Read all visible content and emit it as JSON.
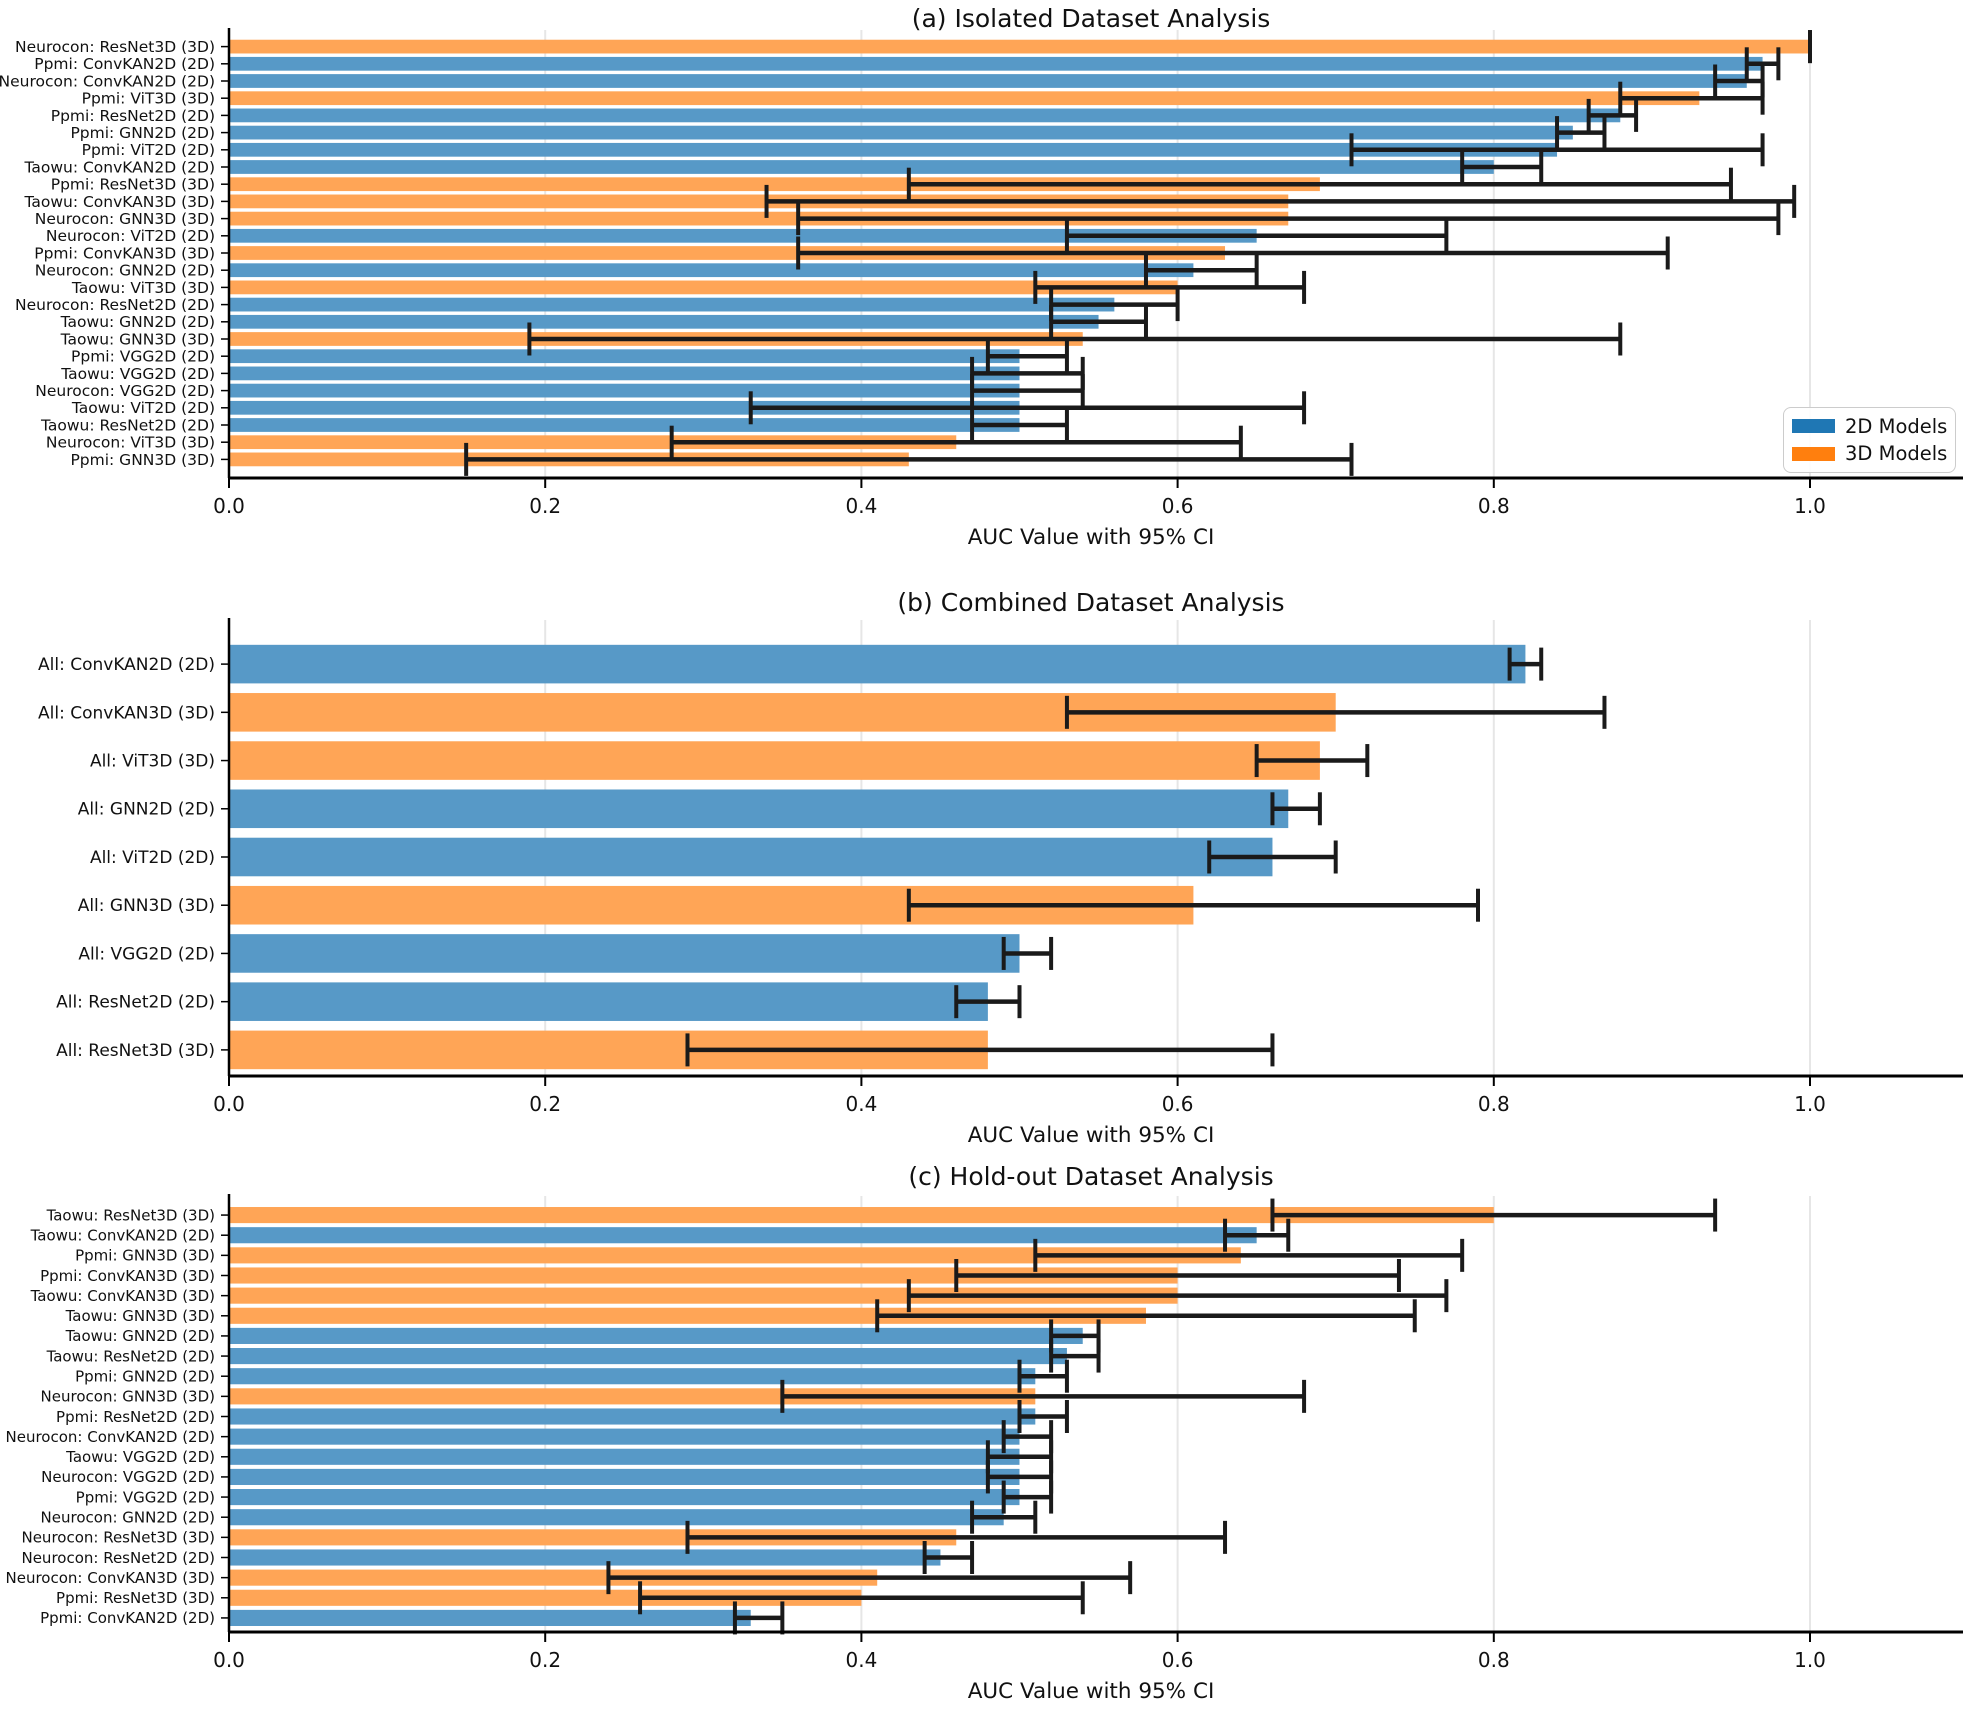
{
  "legend": {
    "items": [
      {
        "label": "2D Models",
        "color": "#1f77b4"
      },
      {
        "label": "3D Models",
        "color": "#ff7f0e"
      }
    ],
    "position": "lower right of panel (a)"
  },
  "colors": {
    "bar_2d": "#5799c7",
    "bar_3d": "#ffa556",
    "legend_2d": "#1f77b4",
    "legend_3d": "#ff7f0e",
    "error_bar": "#1a1a1a",
    "gridline": "#e6e6e6",
    "axis": "#000000"
  },
  "chart_data": [
    {
      "type": "bar",
      "orientation": "horizontal",
      "panel": "a",
      "title": "(a) Isolated Dataset Analysis",
      "xlabel": "AUC Value with 95% CI",
      "xlim": [
        0.0,
        1.09
      ],
      "xticks": [
        "0.0",
        "0.2",
        "0.4",
        "0.6",
        "0.8",
        "1.0"
      ],
      "grid": true,
      "error_bars": "95% CI",
      "bars": [
        {
          "label": "Neurocon: ResNet3D (3D)",
          "group": "3D",
          "auc": 1.0,
          "ci": [
            1.0,
            1.0
          ]
        },
        {
          "label": "Ppmi: ConvKAN2D (2D)",
          "group": "2D",
          "auc": 0.97,
          "ci": [
            0.96,
            0.98
          ]
        },
        {
          "label": "Neurocon: ConvKAN2D (2D)",
          "group": "2D",
          "auc": 0.96,
          "ci": [
            0.94,
            0.97
          ]
        },
        {
          "label": "Ppmi: ViT3D (3D)",
          "group": "3D",
          "auc": 0.93,
          "ci": [
            0.88,
            0.97
          ]
        },
        {
          "label": "Ppmi: ResNet2D (2D)",
          "group": "2D",
          "auc": 0.88,
          "ci": [
            0.86,
            0.89
          ]
        },
        {
          "label": "Ppmi: GNN2D (2D)",
          "group": "2D",
          "auc": 0.85,
          "ci": [
            0.84,
            0.87
          ]
        },
        {
          "label": "Ppmi: ViT2D (2D)",
          "group": "2D",
          "auc": 0.84,
          "ci": [
            0.71,
            0.97
          ]
        },
        {
          "label": "Taowu: ConvKAN2D (2D)",
          "group": "2D",
          "auc": 0.8,
          "ci": [
            0.78,
            0.83
          ]
        },
        {
          "label": "Ppmi: ResNet3D (3D)",
          "group": "3D",
          "auc": 0.69,
          "ci": [
            0.43,
            0.95
          ]
        },
        {
          "label": "Taowu: ConvKAN3D (3D)",
          "group": "3D",
          "auc": 0.67,
          "ci": [
            0.34,
            0.99
          ]
        },
        {
          "label": "Neurocon: GNN3D (3D)",
          "group": "3D",
          "auc": 0.67,
          "ci": [
            0.36,
            0.98
          ]
        },
        {
          "label": "Neurocon: ViT2D (2D)",
          "group": "2D",
          "auc": 0.65,
          "ci": [
            0.53,
            0.77
          ]
        },
        {
          "label": "Ppmi: ConvKAN3D (3D)",
          "group": "3D",
          "auc": 0.63,
          "ci": [
            0.36,
            0.91
          ]
        },
        {
          "label": "Neurocon: GNN2D (2D)",
          "group": "2D",
          "auc": 0.61,
          "ci": [
            0.58,
            0.65
          ]
        },
        {
          "label": "Taowu: ViT3D (3D)",
          "group": "3D",
          "auc": 0.6,
          "ci": [
            0.51,
            0.68
          ]
        },
        {
          "label": "Neurocon: ResNet2D (2D)",
          "group": "2D",
          "auc": 0.56,
          "ci": [
            0.52,
            0.6
          ]
        },
        {
          "label": "Taowu: GNN2D (2D)",
          "group": "2D",
          "auc": 0.55,
          "ci": [
            0.52,
            0.58
          ]
        },
        {
          "label": "Taowu: GNN3D (3D)",
          "group": "3D",
          "auc": 0.54,
          "ci": [
            0.19,
            0.88
          ]
        },
        {
          "label": "Ppmi: VGG2D (2D)",
          "group": "2D",
          "auc": 0.5,
          "ci": [
            0.48,
            0.53
          ]
        },
        {
          "label": "Taowu: VGG2D (2D)",
          "group": "2D",
          "auc": 0.5,
          "ci": [
            0.47,
            0.54
          ]
        },
        {
          "label": "Neurocon: VGG2D (2D)",
          "group": "2D",
          "auc": 0.5,
          "ci": [
            0.47,
            0.54
          ]
        },
        {
          "label": "Taowu: ViT2D (2D)",
          "group": "2D",
          "auc": 0.5,
          "ci": [
            0.33,
            0.68
          ]
        },
        {
          "label": "Taowu: ResNet2D (2D)",
          "group": "2D",
          "auc": 0.5,
          "ci": [
            0.47,
            0.53
          ]
        },
        {
          "label": "Neurocon: ViT3D (3D)",
          "group": "3D",
          "auc": 0.46,
          "ci": [
            0.28,
            0.64
          ]
        },
        {
          "label": "Ppmi: GNN3D (3D)",
          "group": "3D",
          "auc": 0.43,
          "ci": [
            0.15,
            0.71
          ]
        }
      ]
    },
    {
      "type": "bar",
      "orientation": "horizontal",
      "panel": "b",
      "title": "(b) Combined Dataset Analysis",
      "xlabel": "AUC Value with 95% CI",
      "xlim": [
        0.0,
        1.09
      ],
      "xticks": [
        "0.0",
        "0.2",
        "0.4",
        "0.6",
        "0.8",
        "1.0"
      ],
      "grid": true,
      "error_bars": "95% CI",
      "bars": [
        {
          "label": "All: ConvKAN2D (2D)",
          "group": "2D",
          "auc": 0.82,
          "ci": [
            0.81,
            0.83
          ]
        },
        {
          "label": "All: ConvKAN3D (3D)",
          "group": "3D",
          "auc": 0.7,
          "ci": [
            0.53,
            0.87
          ]
        },
        {
          "label": "All: ViT3D (3D)",
          "group": "3D",
          "auc": 0.69,
          "ci": [
            0.65,
            0.72
          ]
        },
        {
          "label": "All: GNN2D (2D)",
          "group": "2D",
          "auc": 0.67,
          "ci": [
            0.66,
            0.69
          ]
        },
        {
          "label": "All: ViT2D (2D)",
          "group": "2D",
          "auc": 0.66,
          "ci": [
            0.62,
            0.7
          ]
        },
        {
          "label": "All: GNN3D (3D)",
          "group": "3D",
          "auc": 0.61,
          "ci": [
            0.43,
            0.79
          ]
        },
        {
          "label": "All: VGG2D (2D)",
          "group": "2D",
          "auc": 0.5,
          "ci": [
            0.49,
            0.52
          ]
        },
        {
          "label": "All: ResNet2D (2D)",
          "group": "2D",
          "auc": 0.48,
          "ci": [
            0.46,
            0.5
          ]
        },
        {
          "label": "All: ResNet3D (3D)",
          "group": "3D",
          "auc": 0.48,
          "ci": [
            0.29,
            0.66
          ]
        }
      ]
    },
    {
      "type": "bar",
      "orientation": "horizontal",
      "panel": "c",
      "title": "(c) Hold-out Dataset Analysis",
      "xlabel": "AUC Value with 95% CI",
      "xlim": [
        0.0,
        1.09
      ],
      "xticks": [
        "0.0",
        "0.2",
        "0.4",
        "0.6",
        "0.8",
        "1.0"
      ],
      "grid": true,
      "error_bars": "95% CI",
      "bars": [
        {
          "label": "Taowu: ResNet3D (3D)",
          "group": "3D",
          "auc": 0.8,
          "ci": [
            0.66,
            0.94
          ]
        },
        {
          "label": "Taowu: ConvKAN2D (2D)",
          "group": "2D",
          "auc": 0.65,
          "ci": [
            0.63,
            0.67
          ]
        },
        {
          "label": "Ppmi: GNN3D (3D)",
          "group": "3D",
          "auc": 0.64,
          "ci": [
            0.51,
            0.78
          ]
        },
        {
          "label": "Ppmi: ConvKAN3D (3D)",
          "group": "3D",
          "auc": 0.6,
          "ci": [
            0.46,
            0.74
          ]
        },
        {
          "label": "Taowu: ConvKAN3D (3D)",
          "group": "3D",
          "auc": 0.6,
          "ci": [
            0.43,
            0.77
          ]
        },
        {
          "label": "Taowu: GNN3D (3D)",
          "group": "3D",
          "auc": 0.58,
          "ci": [
            0.41,
            0.75
          ]
        },
        {
          "label": "Taowu: GNN2D (2D)",
          "group": "2D",
          "auc": 0.54,
          "ci": [
            0.52,
            0.55
          ]
        },
        {
          "label": "Taowu: ResNet2D (2D)",
          "group": "2D",
          "auc": 0.53,
          "ci": [
            0.52,
            0.55
          ]
        },
        {
          "label": "Ppmi: GNN2D (2D)",
          "group": "2D",
          "auc": 0.51,
          "ci": [
            0.5,
            0.53
          ]
        },
        {
          "label": "Neurocon: GNN3D (3D)",
          "group": "3D",
          "auc": 0.51,
          "ci": [
            0.35,
            0.68
          ]
        },
        {
          "label": "Ppmi: ResNet2D (2D)",
          "group": "2D",
          "auc": 0.51,
          "ci": [
            0.5,
            0.53
          ]
        },
        {
          "label": "Neurocon: ConvKAN2D (2D)",
          "group": "2D",
          "auc": 0.5,
          "ci": [
            0.49,
            0.52
          ]
        },
        {
          "label": "Taowu: VGG2D (2D)",
          "group": "2D",
          "auc": 0.5,
          "ci": [
            0.48,
            0.52
          ]
        },
        {
          "label": "Neurocon: VGG2D (2D)",
          "group": "2D",
          "auc": 0.5,
          "ci": [
            0.48,
            0.52
          ]
        },
        {
          "label": "Ppmi: VGG2D (2D)",
          "group": "2D",
          "auc": 0.5,
          "ci": [
            0.49,
            0.52
          ]
        },
        {
          "label": "Neurocon: GNN2D (2D)",
          "group": "2D",
          "auc": 0.49,
          "ci": [
            0.47,
            0.51
          ]
        },
        {
          "label": "Neurocon: ResNet3D (3D)",
          "group": "3D",
          "auc": 0.46,
          "ci": [
            0.29,
            0.63
          ]
        },
        {
          "label": "Neurocon: ResNet2D (2D)",
          "group": "2D",
          "auc": 0.45,
          "ci": [
            0.44,
            0.47
          ]
        },
        {
          "label": "Neurocon: ConvKAN3D (3D)",
          "group": "3D",
          "auc": 0.41,
          "ci": [
            0.24,
            0.57
          ]
        },
        {
          "label": "Ppmi: ResNet3D (3D)",
          "group": "3D",
          "auc": 0.4,
          "ci": [
            0.26,
            0.54
          ]
        },
        {
          "label": "Ppmi: ConvKAN2D (2D)",
          "group": "2D",
          "auc": 0.33,
          "ci": [
            0.32,
            0.35
          ]
        }
      ]
    }
  ]
}
